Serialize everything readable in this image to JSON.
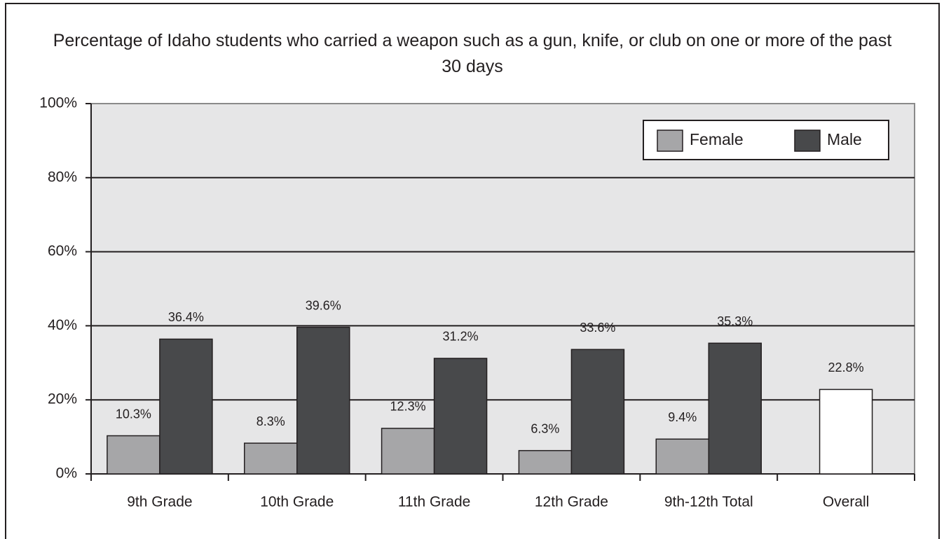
{
  "chart_data": {
    "type": "bar",
    "title": "Percentage of Idaho students who carried a weapon such as a gun, knife, or club on one or more of the past 30 days",
    "categories": [
      "9th Grade",
      "10th Grade",
      "11th Grade",
      "12th Grade",
      "9th-12th Total",
      "Overall"
    ],
    "series": [
      {
        "name": "Female",
        "color": "#a6a6a8",
        "values": [
          10.3,
          8.3,
          12.3,
          6.3,
          9.4,
          null
        ],
        "value_labels": [
          "10.3%",
          "8.3%",
          "12.3%",
          "6.3%",
          "9.4%",
          null
        ]
      },
      {
        "name": "Male",
        "color": "#48494b",
        "values": [
          36.4,
          39.6,
          31.2,
          33.6,
          35.3,
          null
        ],
        "value_labels": [
          "36.4%",
          "39.6%",
          "31.2%",
          "33.6%",
          "35.3%",
          null
        ]
      },
      {
        "color": "#ffffff",
        "values": [
          null,
          null,
          null,
          null,
          null,
          22.8
        ],
        "value_labels": [
          null,
          null,
          null,
          null,
          null,
          "22.8%"
        ]
      }
    ],
    "ylim": [
      0,
      100
    ],
    "yticks": [
      {
        "value": 0,
        "label": "0%"
      },
      {
        "value": 20,
        "label": "20%"
      },
      {
        "value": 40,
        "label": "40%"
      },
      {
        "value": 60,
        "label": "60%"
      },
      {
        "value": 80,
        "label": "80%"
      },
      {
        "value": 100,
        "label": "100%"
      }
    ],
    "grid": true,
    "legend": "top-right"
  }
}
